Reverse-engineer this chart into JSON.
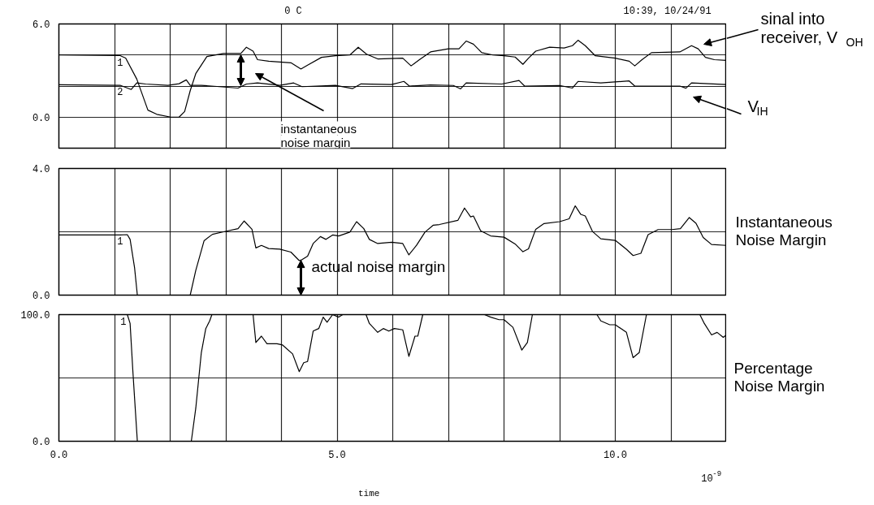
{
  "chart_data": [
    {
      "type": "line",
      "xlim": [
        0,
        12
      ],
      "ylim": [
        -2,
        6
      ],
      "tick_labels": "y",
      "grid": true,
      "xticks": [
        {
          "value": 0,
          "label": null
        },
        {
          "value": 1,
          "label": null
        },
        {
          "value": 2,
          "label": null
        },
        {
          "value": 3,
          "label": null
        },
        {
          "value": 4,
          "label": null
        },
        {
          "value": 5,
          "label": null
        },
        {
          "value": 6,
          "label": null
        },
        {
          "value": 7,
          "label": null
        },
        {
          "value": 8,
          "label": null
        },
        {
          "value": 9,
          "label": null
        },
        {
          "value": 10,
          "label": null
        },
        {
          "value": 11,
          "label": null
        },
        {
          "value": 12,
          "label": null
        }
      ],
      "yticks": [
        {
          "value": 0,
          "label": "0.0"
        },
        {
          "value": 2,
          "label": null
        },
        {
          "value": 4,
          "label": null
        },
        {
          "value": 6,
          "label": "6.0"
        }
      ],
      "annotations": [
        "0 C",
        "10:39, 10/24/91",
        "sinal into\nreceiver, V$_{OH}$",
        "V$_{IH}$",
        "instantaneous\nnoise margin"
      ],
      "series": [
        {
          "name": "1",
          "color": "#000000",
          "x": [
            0,
            1.1,
            1.2,
            1.4,
            1.6,
            1.76,
            2.01,
            2.16,
            2.26,
            2.36,
            2.46,
            2.66,
            2.96,
            3.27,
            3.37,
            3.49,
            3.57,
            3.77,
            4.17,
            4.35,
            4.47,
            4.72,
            4.97,
            5.23,
            5.38,
            5.53,
            5.73,
            6.18,
            6.33,
            6.48,
            6.68,
            7.0,
            7.19,
            7.32,
            7.45,
            7.6,
            7.8,
            8.0,
            8.2,
            8.34,
            8.44,
            8.57,
            8.82,
            9.08,
            9.23,
            9.33,
            9.46,
            9.64,
            10.0,
            10.25,
            10.35,
            10.48,
            10.65,
            11.16,
            11.37,
            11.49,
            11.62,
            11.78,
            12
          ],
          "values": [
            4.0,
            3.96,
            3.8,
            2.45,
            0.45,
            0.18,
            0.0,
            0.0,
            0.36,
            1.7,
            2.8,
            3.9,
            4.1,
            4.1,
            4.5,
            4.25,
            3.7,
            3.6,
            3.5,
            3.1,
            3.35,
            3.85,
            3.95,
            4.0,
            4.5,
            4.05,
            3.75,
            3.8,
            3.3,
            3.7,
            4.2,
            4.4,
            4.4,
            4.9,
            4.7,
            4.15,
            4.0,
            3.95,
            3.87,
            3.4,
            3.8,
            4.25,
            4.5,
            4.45,
            4.6,
            4.95,
            4.6,
            3.95,
            3.8,
            3.6,
            3.3,
            3.7,
            4.15,
            4.2,
            4.6,
            4.4,
            3.85,
            3.7,
            3.65
          ]
        },
        {
          "name": "2",
          "color": "#000000",
          "x": [
            0,
            1.1,
            1.3,
            1.4,
            1.56,
            1.96,
            2.16,
            2.29,
            2.36,
            2.56,
            3.22,
            3.37,
            3.57,
            3.97,
            4.22,
            4.37,
            4.97,
            5.28,
            5.43,
            5.98,
            6.2,
            6.3,
            6.68,
            7.09,
            7.22,
            7.32,
            7.96,
            8.27,
            8.37,
            9.0,
            9.23,
            9.33,
            9.74,
            10.25,
            10.35,
            11.16,
            11.27,
            11.37,
            12
          ],
          "values": [
            2.08,
            2.05,
            1.78,
            2.2,
            2.13,
            2.05,
            2.15,
            2.4,
            2.05,
            2.05,
            1.87,
            2.13,
            2.2,
            2.05,
            2.2,
            1.96,
            2.05,
            1.84,
            2.14,
            2.1,
            2.3,
            2.0,
            2.07,
            2.04,
            1.82,
            2.2,
            2.13,
            2.36,
            2.0,
            2.04,
            1.87,
            2.3,
            2.2,
            2.33,
            2.0,
            2.0,
            1.86,
            2.2,
            2.1
          ]
        }
      ]
    },
    {
      "type": "line",
      "xlim": [
        0,
        12
      ],
      "ylim": [
        0,
        4
      ],
      "tick_labels": "y",
      "grid": true,
      "ylabel": "Instantaneous\nNoise Margin",
      "xticks": [
        {
          "value": 0,
          "label": null
        },
        {
          "value": 1,
          "label": null
        },
        {
          "value": 2,
          "label": null
        },
        {
          "value": 3,
          "label": null
        },
        {
          "value": 4,
          "label": null
        },
        {
          "value": 5,
          "label": null
        },
        {
          "value": 6,
          "label": null
        },
        {
          "value": 7,
          "label": null
        },
        {
          "value": 8,
          "label": null
        },
        {
          "value": 9,
          "label": null
        },
        {
          "value": 10,
          "label": null
        },
        {
          "value": 11,
          "label": null
        },
        {
          "value": 12,
          "label": null
        }
      ],
      "yticks": [
        {
          "value": 0,
          "label": "0.0"
        },
        {
          "value": 2,
          "label": null
        },
        {
          "value": 4,
          "label": "4.0"
        }
      ],
      "annotations": [
        {
          "text": "actual noise margin",
          "x": 4.35,
          "y": 1.1
        }
      ],
      "series": [
        {
          "name": "1",
          "color": "#000000",
          "x": [
            0,
            1.1,
            1.23,
            1.28,
            1.36,
            1.41,
            2.36,
            2.46,
            2.61,
            2.76,
            2.96,
            3.22,
            3.33,
            3.47,
            3.54,
            3.64,
            3.77,
            3.97,
            4.17,
            4.32,
            4.37,
            4.47,
            4.57,
            4.7,
            4.8,
            4.92,
            5.03,
            5.23,
            5.35,
            5.48,
            5.58,
            5.73,
            5.98,
            6.18,
            6.29,
            6.43,
            6.58,
            6.73,
            6.84,
            7.17,
            7.29,
            7.4,
            7.45,
            7.58,
            7.76,
            8.0,
            8.21,
            8.34,
            8.44,
            8.57,
            8.72,
            9.0,
            9.17,
            9.28,
            9.38,
            9.46,
            9.59,
            9.74,
            10.0,
            10.2,
            10.32,
            10.46,
            10.59,
            10.77,
            11.02,
            11.17,
            11.33,
            11.45,
            11.58,
            11.73,
            12
          ],
          "values": [
            1.9,
            1.9,
            1.91,
            1.76,
            0.87,
            0,
            0,
            0.78,
            1.72,
            1.92,
            2.0,
            2.1,
            2.34,
            2.08,
            1.49,
            1.57,
            1.47,
            1.45,
            1.36,
            1.09,
            1.12,
            1.23,
            1.63,
            1.85,
            1.76,
            1.9,
            1.87,
            1.99,
            2.32,
            2.1,
            1.76,
            1.63,
            1.67,
            1.63,
            1.27,
            1.58,
            1.99,
            2.21,
            2.23,
            2.36,
            2.75,
            2.47,
            2.5,
            2.03,
            1.87,
            1.83,
            1.6,
            1.37,
            1.46,
            2.08,
            2.26,
            2.32,
            2.41,
            2.82,
            2.55,
            2.5,
            2.01,
            1.78,
            1.73,
            1.45,
            1.25,
            1.32,
            1.91,
            2.07,
            2.07,
            2.1,
            2.45,
            2.27,
            1.82,
            1.6,
            1.57
          ]
        }
      ]
    },
    {
      "type": "line",
      "xlim": [
        0,
        12
      ],
      "ylim": [
        0,
        100
      ],
      "grid": true,
      "xlabel": "time",
      "ylabel": "Percentage\nNoise Margin",
      "xticks": [
        {
          "value": 0,
          "label": "0.0"
        },
        {
          "value": 1,
          "label": null
        },
        {
          "value": 2,
          "label": null
        },
        {
          "value": 3,
          "label": null
        },
        {
          "value": 4,
          "label": null
        },
        {
          "value": 5,
          "label": "5.0"
        },
        {
          "value": 6,
          "label": null
        },
        {
          "value": 7,
          "label": null
        },
        {
          "value": 8,
          "label": null
        },
        {
          "value": 9,
          "label": null
        },
        {
          "value": 10,
          "label": "10.0"
        },
        {
          "value": 11,
          "label": null
        },
        {
          "value": 12,
          "label": null
        }
      ],
      "yticks": [
        {
          "value": 0,
          "label": "0.0"
        },
        {
          "value": 50,
          "label": null
        },
        {
          "value": 100,
          "label": "100.0"
        }
      ],
      "annotations": [
        "10$^{-9}$"
      ],
      "series": [
        {
          "name": "1",
          "color": "#000000",
          "x": [
            0,
            1.16,
            1.23,
            1.28,
            1.33,
            1.41,
            2.38,
            2.46,
            2.56,
            2.64,
            2.71,
            2.75,
            3.49,
            3.54,
            3.64,
            3.74,
            3.92,
            4.02,
            4.2,
            4.32,
            4.4,
            4.47,
            4.57,
            4.67,
            4.75,
            4.82,
            4.92,
            5.03,
            5.1,
            5.52,
            5.58,
            5.73,
            5.83,
            5.93,
            6.03,
            6.18,
            6.29,
            6.4,
            6.45,
            6.54,
            7.65,
            7.76,
            7.91,
            8.0,
            8.16,
            8.32,
            8.42,
            8.51,
            9.67,
            9.74,
            9.9,
            10.0,
            10.2,
            10.32,
            10.43,
            10.56,
            11.52,
            11.6,
            11.73,
            11.83,
            11.94,
            12
          ],
          "values": [
            100,
            100,
            100,
            93,
            55,
            0,
            0,
            26,
            70,
            89,
            95,
            100,
            100,
            78,
            83,
            77,
            77,
            76,
            69,
            55,
            62,
            63,
            87,
            89,
            98,
            94,
            100,
            98,
            100,
            100,
            93,
            86,
            89,
            87,
            89,
            88,
            67,
            83,
            83,
            100,
            100,
            98,
            96,
            96,
            90,
            72,
            78,
            100,
            100,
            95,
            92,
            92,
            86,
            66,
            70,
            100,
            100,
            93,
            84,
            86,
            82,
            84
          ]
        }
      ]
    }
  ]
}
